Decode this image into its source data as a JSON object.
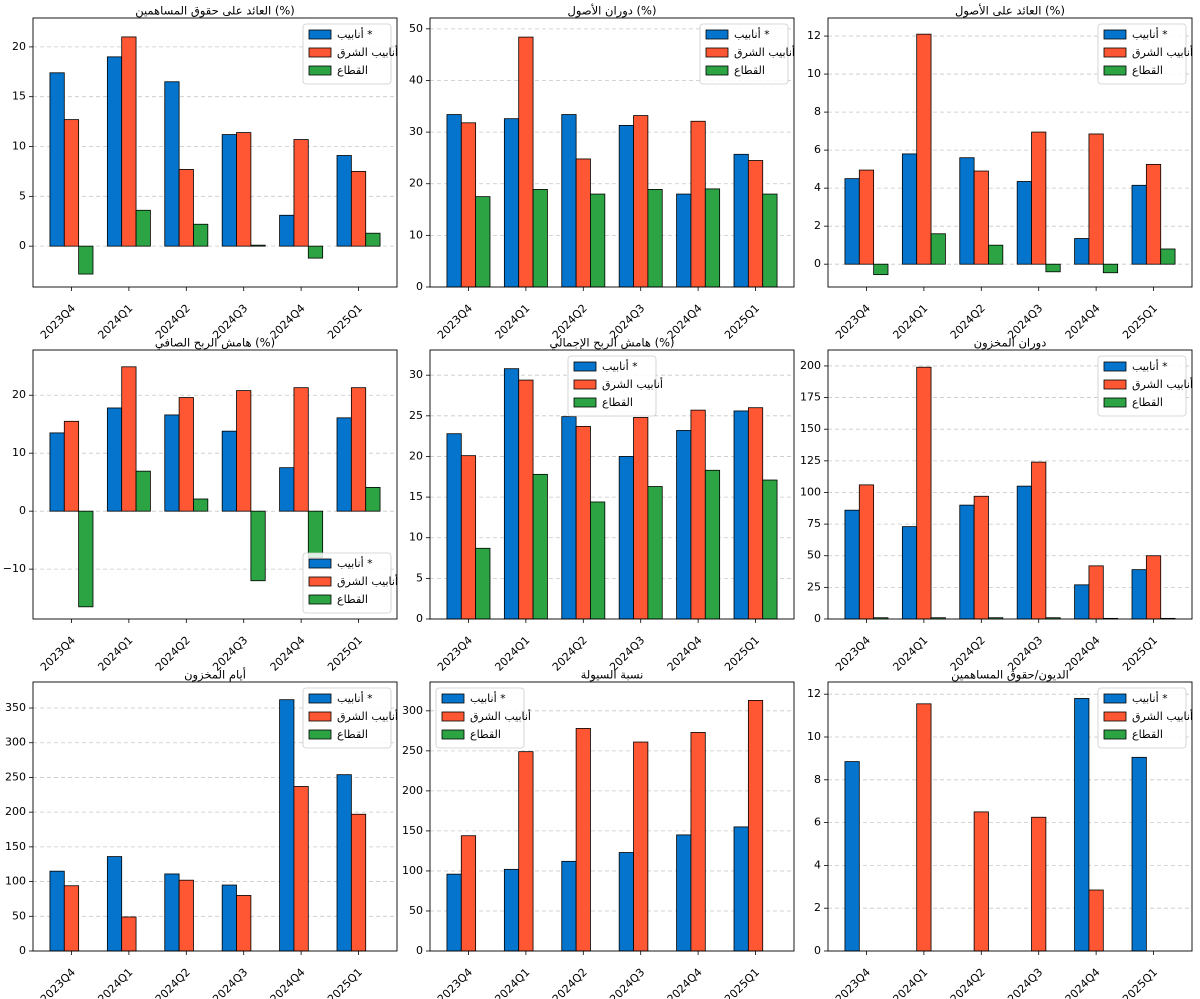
{
  "chart_data": [
    {
      "type": "bar",
      "title": "العائد على حقوق المساهمين (%)",
      "categories": [
        "2023Q4",
        "2024Q1",
        "2024Q2",
        "2024Q3",
        "2024Q4",
        "2025Q1"
      ],
      "series": [
        {
          "name": "أنابيب *",
          "color": "#0474cc",
          "values": [
            17.4,
            19.0,
            16.5,
            11.2,
            3.1,
            9.1
          ]
        },
        {
          "name": "أنابيب الشرق",
          "color": "#ff5733",
          "values": [
            12.7,
            21.0,
            7.7,
            11.4,
            10.7,
            7.5
          ]
        },
        {
          "name": "القطاع",
          "color": "#2ca444",
          "values": [
            -2.8,
            3.6,
            2.2,
            0.1,
            -1.2,
            1.3
          ]
        }
      ],
      "ylim": [
        -4.1,
        22.9
      ],
      "yticks": [
        0,
        5,
        10,
        15,
        20
      ],
      "grid": true,
      "legend": "upper right"
    },
    {
      "type": "bar",
      "title": "دوران الأصول (%)",
      "categories": [
        "2023Q4",
        "2024Q1",
        "2024Q2",
        "2024Q3",
        "2024Q4",
        "2025Q1"
      ],
      "series": [
        {
          "name": "أنابيب *",
          "color": "#0474cc",
          "values": [
            33.4,
            32.6,
            33.4,
            31.3,
            18.0,
            25.7
          ]
        },
        {
          "name": "أنابيب الشرق",
          "color": "#ff5733",
          "values": [
            31.8,
            48.4,
            24.8,
            33.2,
            32.1,
            24.5
          ]
        },
        {
          "name": "القطاع",
          "color": "#2ca444",
          "values": [
            17.5,
            18.9,
            18.0,
            18.9,
            19.0,
            18.0
          ]
        }
      ],
      "ylim": [
        0,
        52.1
      ],
      "yticks": [
        0,
        10,
        20,
        30,
        40,
        50
      ],
      "grid": true,
      "legend": "upper right"
    },
    {
      "type": "bar",
      "title": "العائد على الأصول (%)",
      "categories": [
        "2023Q4",
        "2024Q1",
        "2024Q2",
        "2024Q3",
        "2024Q4",
        "2025Q1"
      ],
      "series": [
        {
          "name": "أنابيب *",
          "color": "#0474cc",
          "values": [
            4.5,
            5.8,
            5.6,
            4.35,
            1.35,
            4.15
          ]
        },
        {
          "name": "أنابيب الشرق",
          "color": "#ff5733",
          "values": [
            4.95,
            12.1,
            4.9,
            6.95,
            6.85,
            5.25
          ]
        },
        {
          "name": "القطاع",
          "color": "#2ca444",
          "values": [
            -0.55,
            1.6,
            1.0,
            -0.4,
            -0.45,
            0.8
          ]
        }
      ],
      "ylim": [
        -1.2,
        12.95
      ],
      "yticks": [
        0,
        2,
        4,
        6,
        8,
        10,
        12
      ],
      "grid": true,
      "legend": "upper right"
    },
    {
      "type": "bar",
      "title": "هامش الربح الصافي (%)",
      "categories": [
        "2023Q4",
        "2024Q1",
        "2024Q2",
        "2024Q3",
        "2024Q4",
        "2025Q1"
      ],
      "series": [
        {
          "name": "أنابيب *",
          "color": "#0474cc",
          "values": [
            13.5,
            17.8,
            16.6,
            13.8,
            7.5,
            16.1
          ]
        },
        {
          "name": "أنابيب الشرق",
          "color": "#ff5733",
          "values": [
            15.5,
            24.9,
            19.6,
            20.8,
            21.3,
            21.3
          ]
        },
        {
          "name": "القطاع",
          "color": "#2ca444",
          "values": [
            -16.5,
            6.9,
            2.1,
            -12.0,
            -8.0,
            4.1
          ]
        }
      ],
      "ylim": [
        -18.6,
        27.8
      ],
      "yticks": [
        {
          "value": -10,
          "label": "−10"
        },
        0,
        10,
        20
      ],
      "grid": true,
      "legend": "lower right"
    },
    {
      "type": "bar",
      "title": "هامش الربح الإجمالي (%)",
      "categories": [
        "2023Q4",
        "2024Q1",
        "2024Q2",
        "2024Q3",
        "2024Q4",
        "2025Q1"
      ],
      "series": [
        {
          "name": "أنابيب *",
          "color": "#0474cc",
          "values": [
            22.8,
            30.8,
            24.9,
            20.0,
            23.2,
            25.6
          ]
        },
        {
          "name": "أنابيب الشرق",
          "color": "#ff5733",
          "values": [
            20.1,
            29.4,
            23.7,
            24.8,
            25.7,
            26.0
          ]
        },
        {
          "name": "القطاع",
          "color": "#2ca444",
          "values": [
            8.7,
            17.8,
            14.4,
            16.3,
            18.3,
            17.1
          ]
        }
      ],
      "ylim": [
        0,
        33.1
      ],
      "yticks": [
        0,
        5,
        10,
        15,
        20,
        25,
        30
      ],
      "grid": true,
      "legend": "upper center"
    },
    {
      "type": "bar",
      "title": "دوران المخزون",
      "categories": [
        "2023Q4",
        "2024Q1",
        "2024Q2",
        "2024Q3",
        "2024Q4",
        "2025Q1"
      ],
      "series": [
        {
          "name": "أنابيب *",
          "color": "#0474cc",
          "values": [
            86,
            73,
            90,
            105,
            27,
            39
          ]
        },
        {
          "name": "أنابيب الشرق",
          "color": "#ff5733",
          "values": [
            106,
            199,
            97,
            124,
            42,
            50
          ]
        },
        {
          "name": "القطاع",
          "color": "#2ca444",
          "values": [
            1,
            1,
            1,
            1,
            0.5,
            0.5
          ]
        }
      ],
      "ylim": [
        0,
        212.6
      ],
      "yticks": [
        0,
        25,
        50,
        75,
        100,
        125,
        150,
        175,
        200
      ],
      "grid": true,
      "legend": "upper right"
    },
    {
      "type": "bar",
      "title": "أيام المخزون",
      "categories": [
        "2023Q4",
        "2024Q1",
        "2024Q2",
        "2024Q3",
        "2024Q4",
        "2025Q1"
      ],
      "series": [
        {
          "name": "أنابيب *",
          "color": "#0474cc",
          "values": [
            115,
            136,
            111,
            95,
            362,
            254
          ]
        },
        {
          "name": "أنابيب الشرق",
          "color": "#ff5733",
          "values": [
            94,
            49,
            102,
            80,
            237,
            197
          ]
        },
        {
          "name": "القطاع",
          "color": "#2ca444",
          "values": [
            0,
            0,
            0,
            0,
            0,
            0
          ]
        }
      ],
      "ylim": [
        0,
        387.5
      ],
      "yticks": [
        0,
        50,
        100,
        150,
        200,
        250,
        300,
        350
      ],
      "grid": true,
      "legend": "upper right"
    },
    {
      "type": "bar",
      "title": "نسبة السيولة",
      "categories": [
        "2023Q4",
        "2024Q1",
        "2024Q2",
        "2024Q3",
        "2024Q4",
        "2025Q1"
      ],
      "series": [
        {
          "name": "أنابيب *",
          "color": "#0474cc",
          "values": [
            96,
            102,
            112,
            123,
            145,
            155
          ]
        },
        {
          "name": "أنابيب الشرق",
          "color": "#ff5733",
          "values": [
            144,
            249,
            278,
            261,
            273,
            313
          ]
        },
        {
          "name": "القطاع",
          "color": "#2ca444",
          "values": [
            0,
            0,
            0,
            0,
            0,
            0
          ]
        }
      ],
      "ylim": [
        0,
        336
      ],
      "yticks": [
        0,
        50,
        100,
        150,
        200,
        250,
        300
      ],
      "grid": true,
      "legend": "upper left"
    },
    {
      "type": "bar",
      "title": "الديون/حقوق المساهمين",
      "categories": [
        "2023Q4",
        "2024Q1",
        "2024Q2",
        "2024Q3",
        "2024Q4",
        "2025Q1"
      ],
      "series": [
        {
          "name": "أنابيب *",
          "color": "#0474cc",
          "values": [
            8.85,
            0,
            0,
            0,
            11.8,
            9.05
          ]
        },
        {
          "name": "أنابيب الشرق",
          "color": "#ff5733",
          "values": [
            0,
            11.55,
            6.5,
            6.25,
            2.85,
            0
          ]
        },
        {
          "name": "القطاع",
          "color": "#2ca444",
          "values": [
            0,
            0,
            0,
            0,
            0,
            0
          ]
        }
      ],
      "ylim": [
        0,
        12.57
      ],
      "yticks": [
        0,
        2,
        4,
        6,
        8,
        10,
        12
      ],
      "grid": true,
      "legend": "upper right"
    }
  ]
}
